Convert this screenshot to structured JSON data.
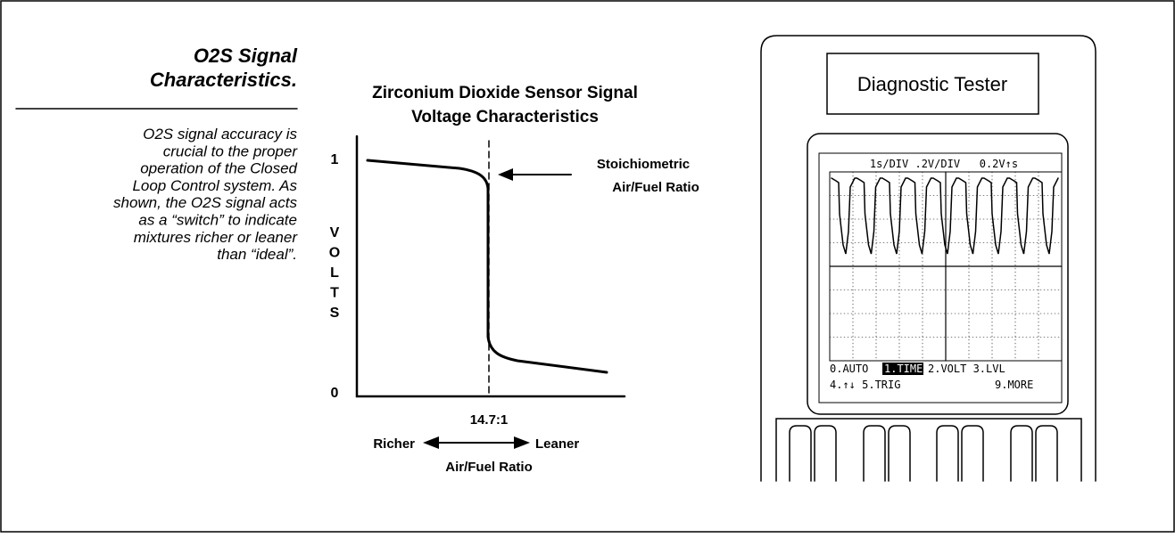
{
  "sidebar": {
    "heading": [
      "O2S Signal",
      "Characteristics."
    ],
    "body": [
      "O2S signal accuracy is",
      "crucial to the proper",
      "operation of the Closed",
      "Loop Control system. As",
      "shown, the O2S signal acts",
      "as a “switch” to indicate",
      "mixtures richer or leaner",
      "than “ideal”."
    ]
  },
  "diagram": {
    "title": [
      "Zirconium Dioxide Sensor Signal",
      "Voltage Characteristics"
    ],
    "y_top": "1",
    "y_bottom": "0",
    "y_label": [
      "V",
      "O",
      "L",
      "T",
      "S"
    ],
    "annotation": [
      "Stoichiometric",
      "Air/Fuel Ratio"
    ],
    "x_mark": "14.7:1",
    "richer": "Richer",
    "leaner": "Leaner",
    "x_label": "Air/Fuel Ratio"
  },
  "tester": {
    "title": "Diagnostic Tester",
    "screen_header": "1s/DIV .2V/DIV   0.2V↑s",
    "menu": [
      [
        "0.AUTO",
        "1.TIME",
        "2.VOLT 3.LVL"
      ],
      [
        "4.↑↓ 5.TRIG",
        "9.MORE"
      ]
    ]
  }
}
